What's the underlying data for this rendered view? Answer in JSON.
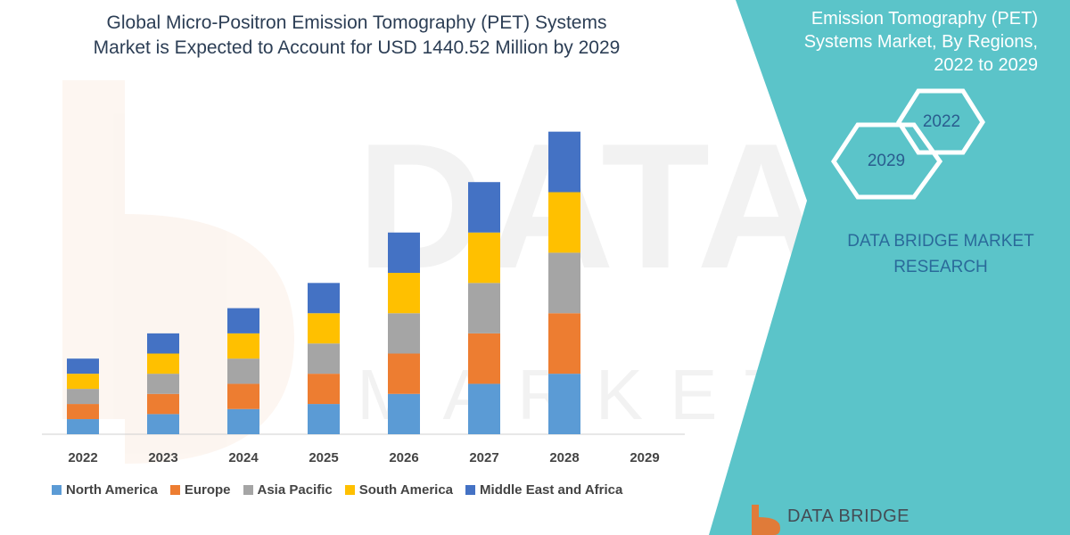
{
  "header": {
    "title_line1": "Global Micro-Positron Emission Tomography (PET) Systems",
    "title_line2": "Market is Expected to Account for USD 1440.52 Million by 2029"
  },
  "side_panel": {
    "title_line1": "Emission Tomography (PET)",
    "title_line2": "Systems Market, By Regions,",
    "title_line3": "2022 to 2029",
    "hex_top": "2022",
    "hex_bottom": "2029",
    "brand_line1": "DATA BRIDGE MARKET",
    "brand_line2": "RESEARCH",
    "logo_text": "DATA BRIDGE",
    "panel_color": "#5bc4c9"
  },
  "chart_data": {
    "type": "bar",
    "stacked": true,
    "categories": [
      "2022",
      "2023",
      "2024",
      "2025",
      "2026",
      "2027",
      "2028",
      "2029"
    ],
    "series": [
      {
        "name": "North America",
        "color": "#5b9bd5",
        "values": [
          3,
          4,
          5,
          6,
          8,
          10,
          12,
          0
        ]
      },
      {
        "name": "Europe",
        "color": "#ed7d31",
        "values": [
          3,
          4,
          5,
          6,
          8,
          10,
          12,
          0
        ]
      },
      {
        "name": "Asia Pacific",
        "color": "#a5a5a5",
        "values": [
          3,
          4,
          5,
          6,
          8,
          10,
          12,
          0
        ]
      },
      {
        "name": "South America",
        "color": "#ffc000",
        "values": [
          3,
          4,
          5,
          6,
          8,
          10,
          12,
          0
        ]
      },
      {
        "name": "Middle East and Africa",
        "color": "#4472c4",
        "values": [
          3,
          4,
          5,
          6,
          8,
          10,
          12,
          0
        ]
      }
    ],
    "ylim": [
      0,
      61
    ],
    "grid": false,
    "legend_position": "bottom"
  }
}
